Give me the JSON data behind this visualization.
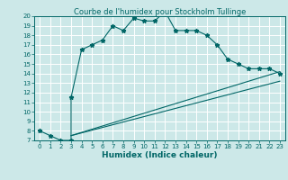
{
  "title": "Courbe de l'humidex pour Stockholm Tullinge",
  "xlabel": "Humidex (Indice chaleur)",
  "bg_color": "#cce8e8",
  "grid_color": "#ffffff",
  "line_color": "#006666",
  "xlim": [
    -0.5,
    23.5
  ],
  "ylim": [
    7,
    20
  ],
  "xticks": [
    0,
    1,
    2,
    3,
    4,
    5,
    6,
    7,
    8,
    9,
    10,
    11,
    12,
    13,
    14,
    15,
    16,
    17,
    18,
    19,
    20,
    21,
    22,
    23
  ],
  "yticks": [
    7,
    8,
    9,
    10,
    11,
    12,
    13,
    14,
    15,
    16,
    17,
    18,
    19,
    20
  ],
  "main_x": [
    0,
    1,
    2,
    3,
    3,
    4,
    5,
    6,
    7,
    8,
    9,
    10,
    11,
    12,
    13,
    14,
    15,
    16,
    17,
    18,
    19,
    20,
    21,
    22,
    23
  ],
  "main_y": [
    8.0,
    7.5,
    7.0,
    7.0,
    11.5,
    16.5,
    17.0,
    17.5,
    19.0,
    18.5,
    19.8,
    19.5,
    19.5,
    20.5,
    18.5,
    18.5,
    18.5,
    18.0,
    17.0,
    15.5,
    15.0,
    14.5,
    14.5,
    14.5,
    14.0
  ],
  "line2_x": [
    3,
    23
  ],
  "line2_y": [
    7.5,
    14.2
  ],
  "line3_x": [
    3,
    23
  ],
  "line3_y": [
    7.5,
    13.2
  ],
  "title_fontsize": 6,
  "tick_fontsize": 5,
  "xlabel_fontsize": 6.5
}
